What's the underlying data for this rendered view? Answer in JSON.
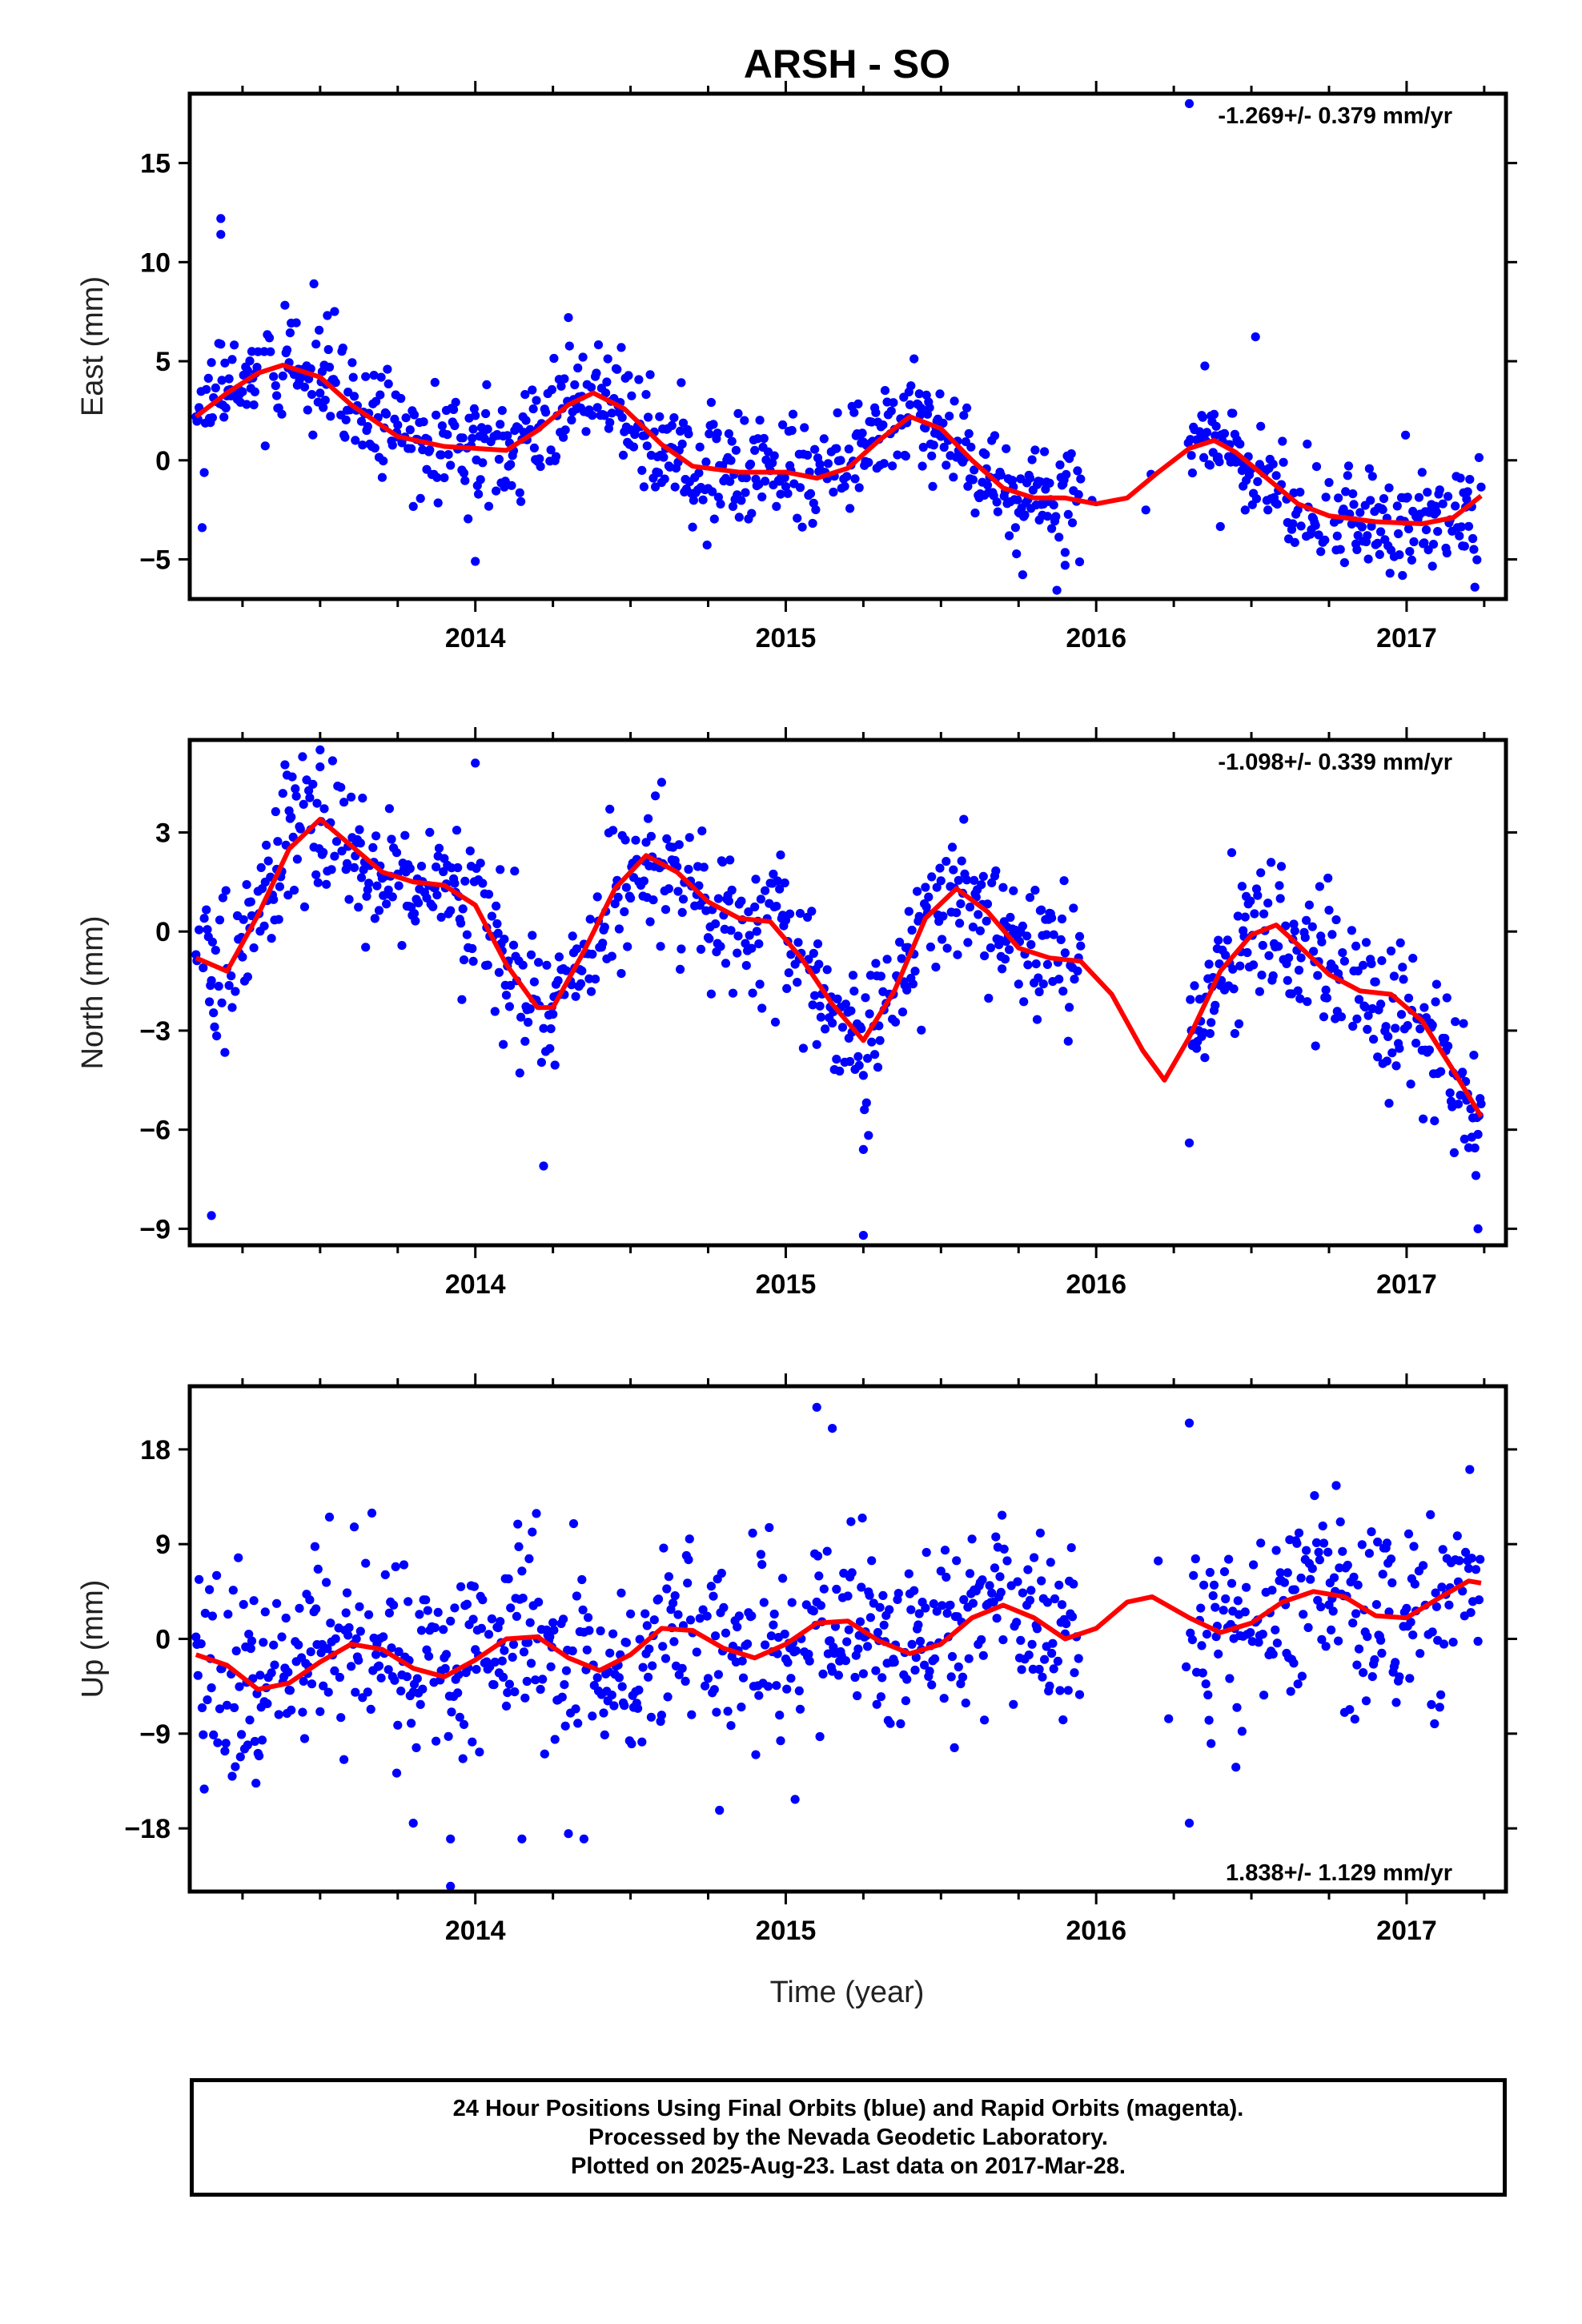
{
  "title": "ARSH - SO",
  "xlabel": "Time (year)",
  "footer": {
    "line1": "24 Hour Positions Using Final Orbits (blue) and Rapid Orbits (magenta).",
    "line2": "Processed by the Nevada Geodetic Laboratory.",
    "line3": "Plotted on 2025-Aug-23. Last data on 2017-Mar-28."
  },
  "colors": {
    "points": "#0000ff",
    "fit": "#ff0000",
    "frame": "#000000"
  },
  "chart_data": [
    {
      "type": "scatter",
      "ylabel": "East (mm)",
      "rate_label": "-1.269+/- 0.379 mm/yr",
      "xlim": [
        2013.08,
        2017.32
      ],
      "ylim": [
        -7,
        18.5
      ],
      "yticks": [
        -5,
        0,
        5,
        10,
        15
      ],
      "xticks": [
        2014,
        2015,
        2016,
        2017
      ],
      "x_minor_step": 0.25,
      "data_range": [
        2013.1,
        2017.24
      ],
      "gap": [
        2015.95,
        2016.3
      ],
      "fit": [
        [
          2013.1,
          2.2
        ],
        [
          2013.2,
          3.4
        ],
        [
          2013.3,
          4.4
        ],
        [
          2013.38,
          4.8
        ],
        [
          2013.5,
          4.2
        ],
        [
          2013.6,
          2.8
        ],
        [
          2013.75,
          1.2
        ],
        [
          2013.9,
          0.7
        ],
        [
          2014.0,
          0.6
        ],
        [
          2014.1,
          0.5
        ],
        [
          2014.2,
          1.5
        ],
        [
          2014.3,
          2.8
        ],
        [
          2014.38,
          3.4
        ],
        [
          2014.48,
          2.6
        ],
        [
          2014.6,
          0.8
        ],
        [
          2014.7,
          -0.3
        ],
        [
          2014.85,
          -0.6
        ],
        [
          2015.0,
          -0.6
        ],
        [
          2015.1,
          -0.9
        ],
        [
          2015.2,
          -0.4
        ],
        [
          2015.3,
          1.0
        ],
        [
          2015.4,
          2.2
        ],
        [
          2015.5,
          1.6
        ],
        [
          2015.6,
          0.0
        ],
        [
          2015.7,
          -1.4
        ],
        [
          2015.8,
          -1.9
        ],
        [
          2015.9,
          -1.9
        ],
        [
          2016.0,
          -2.2
        ],
        [
          2016.1,
          -1.9
        ],
        [
          2016.2,
          -0.6
        ],
        [
          2016.3,
          0.6
        ],
        [
          2016.38,
          1.0
        ],
        [
          2016.45,
          0.4
        ],
        [
          2016.55,
          -0.9
        ],
        [
          2016.65,
          -2.2
        ],
        [
          2016.75,
          -2.8
        ],
        [
          2016.9,
          -3.1
        ],
        [
          2017.05,
          -3.2
        ],
        [
          2017.15,
          -2.9
        ],
        [
          2017.24,
          -1.8
        ]
      ],
      "noise": 1.4,
      "outliers": [
        [
          2013.18,
          12.2
        ],
        [
          2013.18,
          11.4
        ],
        [
          2013.12,
          -3.4
        ],
        [
          2014.0,
          -5.1
        ],
        [
          2015.9,
          -5.3
        ],
        [
          2016.3,
          18.0
        ],
        [
          2017.22,
          -6.4
        ],
        [
          2014.3,
          7.2
        ]
      ]
    },
    {
      "type": "scatter",
      "ylabel": "North (mm)",
      "rate_label": "-1.098+/- 0.339 mm/yr",
      "xlim": [
        2013.08,
        2017.32
      ],
      "ylim": [
        -9.5,
        5.8
      ],
      "yticks": [
        -9,
        -6,
        -3,
        0,
        3
      ],
      "xticks": [
        2014,
        2015,
        2016,
        2017
      ],
      "x_minor_step": 0.25,
      "data_range": [
        2013.1,
        2017.24
      ],
      "gap": [
        2015.95,
        2016.3
      ],
      "fit": [
        [
          2013.1,
          -0.8
        ],
        [
          2013.2,
          -1.2
        ],
        [
          2013.3,
          0.5
        ],
        [
          2013.4,
          2.5
        ],
        [
          2013.5,
          3.4
        ],
        [
          2013.6,
          2.6
        ],
        [
          2013.7,
          1.8
        ],
        [
          2013.8,
          1.5
        ],
        [
          2013.9,
          1.4
        ],
        [
          2014.0,
          0.8
        ],
        [
          2014.1,
          -1.0
        ],
        [
          2014.2,
          -2.3
        ],
        [
          2014.25,
          -2.3
        ],
        [
          2014.35,
          -0.6
        ],
        [
          2014.45,
          1.3
        ],
        [
          2014.55,
          2.3
        ],
        [
          2014.65,
          1.8
        ],
        [
          2014.75,
          0.9
        ],
        [
          2014.85,
          0.4
        ],
        [
          2014.95,
          0.3
        ],
        [
          2015.05,
          -0.8
        ],
        [
          2015.15,
          -2.2
        ],
        [
          2015.25,
          -3.3
        ],
        [
          2015.35,
          -1.8
        ],
        [
          2015.45,
          0.4
        ],
        [
          2015.55,
          1.3
        ],
        [
          2015.65,
          0.6
        ],
        [
          2015.75,
          -0.5
        ],
        [
          2015.85,
          -0.8
        ],
        [
          2015.95,
          -0.9
        ],
        [
          2016.05,
          -1.9
        ],
        [
          2016.15,
          -3.6
        ],
        [
          2016.22,
          -4.5
        ],
        [
          2016.3,
          -3.2
        ],
        [
          2016.4,
          -1.2
        ],
        [
          2016.5,
          -0.1
        ],
        [
          2016.58,
          0.2
        ],
        [
          2016.65,
          -0.4
        ],
        [
          2016.75,
          -1.3
        ],
        [
          2016.85,
          -1.8
        ],
        [
          2016.95,
          -1.9
        ],
        [
          2017.05,
          -2.7
        ],
        [
          2017.15,
          -4.2
        ],
        [
          2017.24,
          -5.6
        ]
      ],
      "noise": 1.1,
      "outliers": [
        [
          2013.15,
          -8.6
        ],
        [
          2014.22,
          -7.1
        ],
        [
          2015.25,
          -9.2
        ],
        [
          2015.25,
          -6.6
        ],
        [
          2016.3,
          -6.4
        ],
        [
          2017.23,
          -9.0
        ],
        [
          2013.5,
          5.5
        ],
        [
          2014.0,
          5.1
        ]
      ]
    },
    {
      "type": "scatter",
      "ylabel": "Up (mm)",
      "rate_label": "1.838+/- 1.129 mm/yr",
      "xlim": [
        2013.08,
        2017.32
      ],
      "ylim": [
        -24,
        24
      ],
      "yticks": [
        -18,
        -9,
        0,
        9,
        18
      ],
      "xticks": [
        2014,
        2015,
        2016,
        2017
      ],
      "x_minor_step": 0.25,
      "data_range": [
        2013.1,
        2017.24
      ],
      "gap": [
        2015.95,
        2016.3
      ],
      "fit": [
        [
          2013.1,
          -1.5
        ],
        [
          2013.2,
          -2.5
        ],
        [
          2013.3,
          -4.8
        ],
        [
          2013.4,
          -4.2
        ],
        [
          2013.5,
          -2.2
        ],
        [
          2013.6,
          -0.5
        ],
        [
          2013.7,
          -1.0
        ],
        [
          2013.8,
          -2.8
        ],
        [
          2013.9,
          -3.6
        ],
        [
          2014.0,
          -2.0
        ],
        [
          2014.1,
          0.0
        ],
        [
          2014.2,
          0.2
        ],
        [
          2014.3,
          -1.8
        ],
        [
          2014.4,
          -3.0
        ],
        [
          2014.5,
          -1.5
        ],
        [
          2014.6,
          1.0
        ],
        [
          2014.7,
          0.8
        ],
        [
          2014.8,
          -0.9
        ],
        [
          2014.9,
          -1.8
        ],
        [
          2015.0,
          -0.5
        ],
        [
          2015.1,
          1.5
        ],
        [
          2015.2,
          1.7
        ],
        [
          2015.3,
          -0.2
        ],
        [
          2015.4,
          -1.4
        ],
        [
          2015.5,
          -0.5
        ],
        [
          2015.6,
          2.0
        ],
        [
          2015.7,
          3.2
        ],
        [
          2015.8,
          2.0
        ],
        [
          2015.9,
          0.0
        ],
        [
          2016.0,
          1.0
        ],
        [
          2016.1,
          3.5
        ],
        [
          2016.18,
          4.0
        ],
        [
          2016.3,
          2.0
        ],
        [
          2016.4,
          0.6
        ],
        [
          2016.5,
          1.5
        ],
        [
          2016.6,
          3.5
        ],
        [
          2016.7,
          4.5
        ],
        [
          2016.8,
          4.0
        ],
        [
          2016.9,
          2.2
        ],
        [
          2017.0,
          2.0
        ],
        [
          2017.1,
          3.8
        ],
        [
          2017.2,
          5.5
        ],
        [
          2017.24,
          5.3
        ]
      ],
      "noise": 4.5,
      "outliers": [
        [
          2013.92,
          -23.5
        ],
        [
          2013.92,
          -19.0
        ],
        [
          2015.1,
          22.0
        ],
        [
          2015.15,
          20.0
        ],
        [
          2016.3,
          20.5
        ],
        [
          2016.3,
          -17.5
        ],
        [
          2014.15,
          -19.0
        ],
        [
          2014.35,
          -19.0
        ],
        [
          2014.3,
          -18.5
        ],
        [
          2013.8,
          -17.5
        ]
      ]
    }
  ]
}
